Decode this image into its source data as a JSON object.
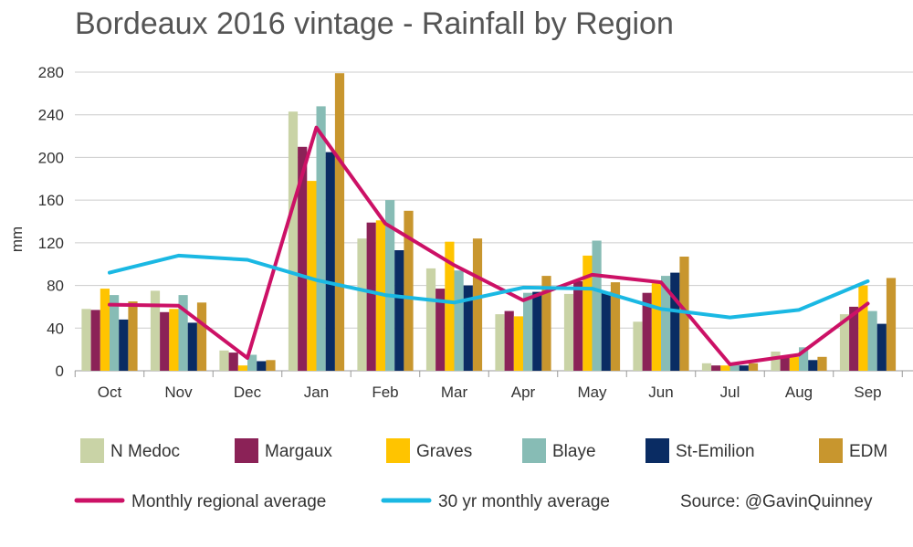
{
  "chart_data": {
    "type": "bar",
    "title": "Bordeaux 2016 vintage - Rainfall by Region",
    "ylabel": "mm",
    "xlabel": "",
    "ylim": [
      0,
      280
    ],
    "yticks": [
      0,
      40,
      80,
      120,
      160,
      200,
      240,
      280
    ],
    "grid": true,
    "categories": [
      "Oct",
      "Nov",
      "Dec",
      "Jan",
      "Feb",
      "Mar",
      "Apr",
      "May",
      "Jun",
      "Jul",
      "Aug",
      "Sep"
    ],
    "series": [
      {
        "name": "N Medoc",
        "color": "#c9d3a6",
        "values": [
          58,
          75,
          19,
          243,
          124,
          96,
          53,
          72,
          46,
          7,
          18,
          53
        ]
      },
      {
        "name": "Margaux",
        "color": "#8b2257",
        "values": [
          57,
          55,
          17,
          210,
          139,
          77,
          56,
          84,
          73,
          5,
          13,
          60
        ]
      },
      {
        "name": "Graves",
        "color": "#ffc400",
        "values": [
          77,
          58,
          5,
          178,
          141,
          121,
          51,
          108,
          82,
          5,
          13,
          80
        ]
      },
      {
        "name": "Blaye",
        "color": "#87bcb5",
        "values": [
          71,
          71,
          15,
          248,
          160,
          94,
          73,
          122,
          89,
          6,
          22,
          56
        ]
      },
      {
        "name": "St-Emilion",
        "color": "#0a2c63",
        "values": [
          48,
          45,
          9,
          205,
          113,
          80,
          74,
          74,
          92,
          5,
          10,
          44
        ]
      },
      {
        "name": "EDM",
        "color": "#c8962e",
        "values": [
          65,
          64,
          10,
          279,
          150,
          124,
          89,
          83,
          107,
          7,
          13,
          87
        ]
      }
    ],
    "lines": [
      {
        "name": "Monthly regional average",
        "color": "#cc1166",
        "values": [
          62,
          61,
          12,
          228,
          138,
          99,
          66,
          90,
          83,
          6,
          15,
          63
        ]
      },
      {
        "name": "30 yr monthly average",
        "color": "#1ab8e3",
        "values": [
          92,
          108,
          104,
          85,
          71,
          64,
          78,
          77,
          58,
          50,
          57,
          84
        ]
      }
    ],
    "source": "Source: @GavinQuinney",
    "legend_position": "bottom"
  }
}
